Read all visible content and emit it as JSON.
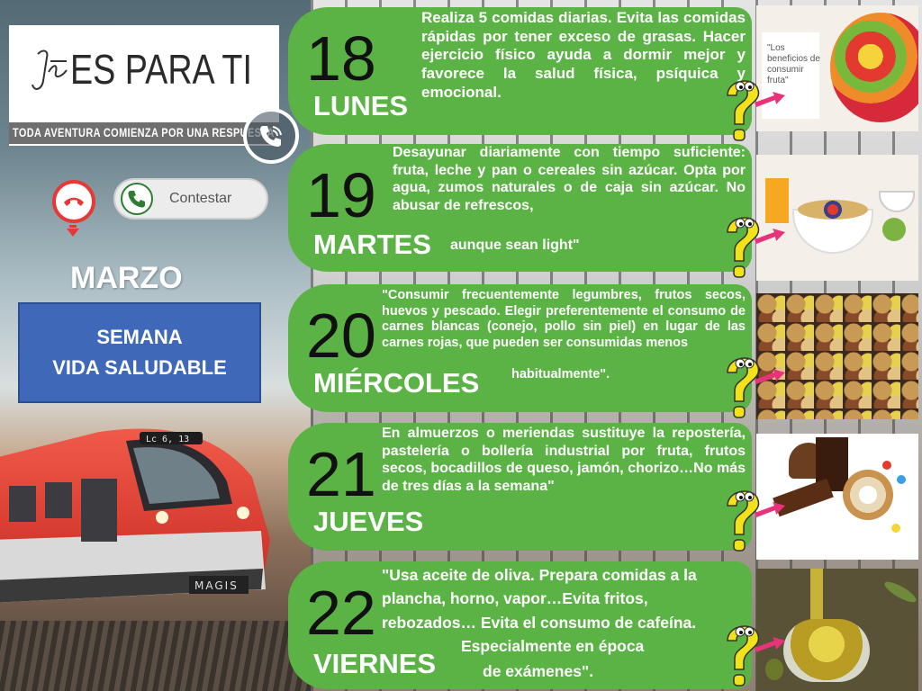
{
  "logo": {
    "title": "ES PARA TI",
    "tagline": "TODA AVENTURA COMIENZA POR UNA RESPUESTA"
  },
  "call": {
    "answer_label": "Contestar"
  },
  "month": "MARZO",
  "week": {
    "line1": "SEMANA",
    "line2": "VIDA SALUDABLE"
  },
  "train_label": "Lc 6, 13",
  "train_brand": "MAGIS",
  "days": [
    {
      "number": "18",
      "name": "LUNES",
      "text": "Realiza 5 comidas diarias. Evita las comidas rápidas por tener exceso de grasas. Hacer ejercicio físico ayuda a dormir mejor y favorece la salud física, psíquica y emocional.",
      "tail": "",
      "photo_caption": "\"Los beneficios de consumir fruta\""
    },
    {
      "number": "19",
      "name": "MARTES",
      "text": "Desayunar diariamente con tiempo suficiente: fruta, leche y pan o cereales sin azúcar. Opta por agua, zumos naturales o de caja sin azúcar. No abusar de refrescos,",
      "tail": "aunque sean light\""
    },
    {
      "number": "20",
      "name": "MIÉRCOLES",
      "text": "\"Consumir frecuentemente legumbres, frutos secos, huevos y pescado. Elegir preferentemente el consumo de carnes blancas (conejo, pollo sin piel) en lugar de las carnes rojas, que pueden ser consumidas menos",
      "tail": "habitualmente\"."
    },
    {
      "number": "21",
      "name": "JUEVES",
      "text": "En almuerzos o meriendas sustituye la repostería, pastelería o bollería industrial por fruta, frutos secos, bocadillos de queso, jamón, chorizo…No más de tres días a la semana\"",
      "tail": ""
    },
    {
      "number": "22",
      "name": "VIERNES",
      "text": "\"Usa aceite de oliva. Prepara comidas a la plancha, horno, vapor…Evita fritos, rebozados… Evita el consumo de cafeína.",
      "tail": "Especialmente en época",
      "tail2": "de exámenes\"."
    }
  ]
}
